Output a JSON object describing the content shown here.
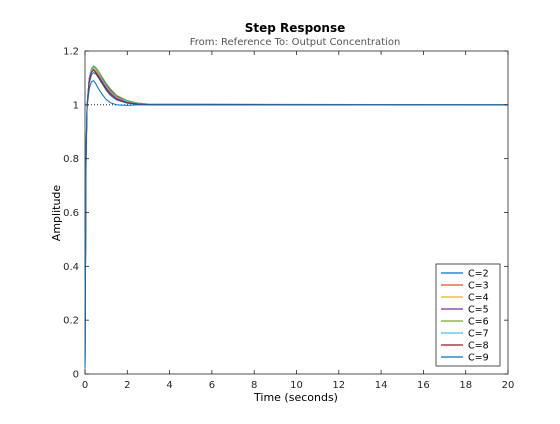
{
  "chart_data": {
    "type": "line",
    "title": "Step Response",
    "subtitle": "From: Reference  To: Output Concentration",
    "xlabel": "Time (seconds)",
    "ylabel": "Amplitude",
    "xlim": [
      0,
      20
    ],
    "ylim": [
      0,
      1.2
    ],
    "xticks": [
      "0",
      "2",
      "4",
      "6",
      "8",
      "10",
      "12",
      "14",
      "16",
      "18",
      "20"
    ],
    "yticks": [
      "0",
      "0.2",
      "0.4",
      "0.6",
      "0.8",
      "1",
      "1.2"
    ],
    "grid": false,
    "legend_position": "bottom-right",
    "reference_line": {
      "y": 1,
      "style": "dotted"
    },
    "series": [
      {
        "name": "C=2",
        "color": "#0072bd",
        "points": [
          [
            0,
            0.02
          ],
          [
            0.05,
            0.85
          ],
          [
            0.1,
            1.0
          ],
          [
            0.2,
            1.08
          ],
          [
            0.3,
            1.11
          ],
          [
            0.4,
            1.12
          ],
          [
            0.5,
            1.115
          ],
          [
            0.6,
            1.105
          ],
          [
            0.8,
            1.08
          ],
          [
            1.0,
            1.055
          ],
          [
            1.2,
            1.035
          ],
          [
            1.5,
            1.018
          ],
          [
            2.0,
            1.006
          ],
          [
            2.5,
            1.002
          ],
          [
            3.0,
            1.0
          ],
          [
            20,
            1.0
          ]
        ]
      },
      {
        "name": "C=3",
        "color": "#d95319",
        "points": [
          [
            0,
            0.02
          ],
          [
            0.05,
            0.84
          ],
          [
            0.1,
            1.0
          ],
          [
            0.2,
            1.09
          ],
          [
            0.3,
            1.12
          ],
          [
            0.4,
            1.13
          ],
          [
            0.5,
            1.125
          ],
          [
            0.6,
            1.115
          ],
          [
            0.8,
            1.09
          ],
          [
            1.0,
            1.065
          ],
          [
            1.2,
            1.045
          ],
          [
            1.5,
            1.025
          ],
          [
            2.0,
            1.01
          ],
          [
            2.5,
            1.004
          ],
          [
            3.0,
            1.001
          ],
          [
            20,
            1.0
          ]
        ]
      },
      {
        "name": "C=4",
        "color": "#edb120",
        "points": [
          [
            0,
            0.02
          ],
          [
            0.05,
            0.83
          ],
          [
            0.1,
            1.0
          ],
          [
            0.2,
            1.095
          ],
          [
            0.3,
            1.125
          ],
          [
            0.4,
            1.135
          ],
          [
            0.5,
            1.13
          ],
          [
            0.6,
            1.12
          ],
          [
            0.8,
            1.095
          ],
          [
            1.0,
            1.07
          ],
          [
            1.2,
            1.05
          ],
          [
            1.5,
            1.028
          ],
          [
            2.0,
            1.012
          ],
          [
            2.5,
            1.005
          ],
          [
            3.0,
            1.001
          ],
          [
            20,
            1.0
          ]
        ]
      },
      {
        "name": "C=5",
        "color": "#7e2f8e",
        "points": [
          [
            0,
            0.02
          ],
          [
            0.05,
            0.82
          ],
          [
            0.1,
            1.0
          ],
          [
            0.2,
            1.1
          ],
          [
            0.3,
            1.13
          ],
          [
            0.4,
            1.14
          ],
          [
            0.5,
            1.135
          ],
          [
            0.6,
            1.125
          ],
          [
            0.8,
            1.1
          ],
          [
            1.0,
            1.075
          ],
          [
            1.2,
            1.055
          ],
          [
            1.5,
            1.032
          ],
          [
            2.0,
            1.014
          ],
          [
            2.5,
            1.006
          ],
          [
            3.0,
            1.002
          ],
          [
            20,
            1.0
          ]
        ]
      },
      {
        "name": "C=6",
        "color": "#77ac30",
        "points": [
          [
            0,
            0.02
          ],
          [
            0.05,
            0.81
          ],
          [
            0.1,
            1.0
          ],
          [
            0.2,
            1.1
          ],
          [
            0.3,
            1.135
          ],
          [
            0.4,
            1.145
          ],
          [
            0.5,
            1.14
          ],
          [
            0.6,
            1.13
          ],
          [
            0.8,
            1.105
          ],
          [
            1.0,
            1.08
          ],
          [
            1.2,
            1.06
          ],
          [
            1.5,
            1.035
          ],
          [
            2.0,
            1.016
          ],
          [
            2.5,
            1.007
          ],
          [
            3.0,
            1.003
          ],
          [
            20,
            1.0
          ]
        ]
      },
      {
        "name": "C=7",
        "color": "#4dbeee",
        "points": [
          [
            0,
            0.02
          ],
          [
            0.05,
            0.8
          ],
          [
            0.1,
            1.0
          ],
          [
            0.2,
            1.1
          ],
          [
            0.3,
            1.13
          ],
          [
            0.4,
            1.14
          ],
          [
            0.5,
            1.135
          ],
          [
            0.6,
            1.125
          ],
          [
            0.8,
            1.095
          ],
          [
            1.0,
            1.07
          ],
          [
            1.2,
            1.05
          ],
          [
            1.5,
            1.028
          ],
          [
            2.0,
            1.012
          ],
          [
            2.5,
            1.005
          ],
          [
            3.0,
            1.002
          ],
          [
            20,
            1.0
          ]
        ]
      },
      {
        "name": "C=8",
        "color": "#a2142f",
        "points": [
          [
            0,
            0.02
          ],
          [
            0.05,
            0.8
          ],
          [
            0.1,
            1.0
          ],
          [
            0.2,
            1.09
          ],
          [
            0.3,
            1.12
          ],
          [
            0.4,
            1.13
          ],
          [
            0.5,
            1.12
          ],
          [
            0.6,
            1.11
          ],
          [
            0.8,
            1.085
          ],
          [
            1.0,
            1.06
          ],
          [
            1.2,
            1.04
          ],
          [
            1.5,
            1.022
          ],
          [
            2.0,
            1.008
          ],
          [
            2.5,
            1.003
          ],
          [
            3.0,
            1.001
          ],
          [
            20,
            1.0
          ]
        ]
      },
      {
        "name": "C=9",
        "color": "#0072bd",
        "points": [
          [
            0,
            0.02
          ],
          [
            0.05,
            0.79
          ],
          [
            0.1,
            0.99
          ],
          [
            0.2,
            1.06
          ],
          [
            0.3,
            1.085
          ],
          [
            0.4,
            1.09
          ],
          [
            0.5,
            1.08
          ],
          [
            0.6,
            1.065
          ],
          [
            0.8,
            1.04
          ],
          [
            1.0,
            1.02
          ],
          [
            1.2,
            1.008
          ],
          [
            1.5,
            1.0
          ],
          [
            2.0,
            0.998
          ],
          [
            2.5,
            1.0
          ],
          [
            3.0,
            1.0
          ],
          [
            20,
            1.0
          ]
        ]
      }
    ]
  }
}
